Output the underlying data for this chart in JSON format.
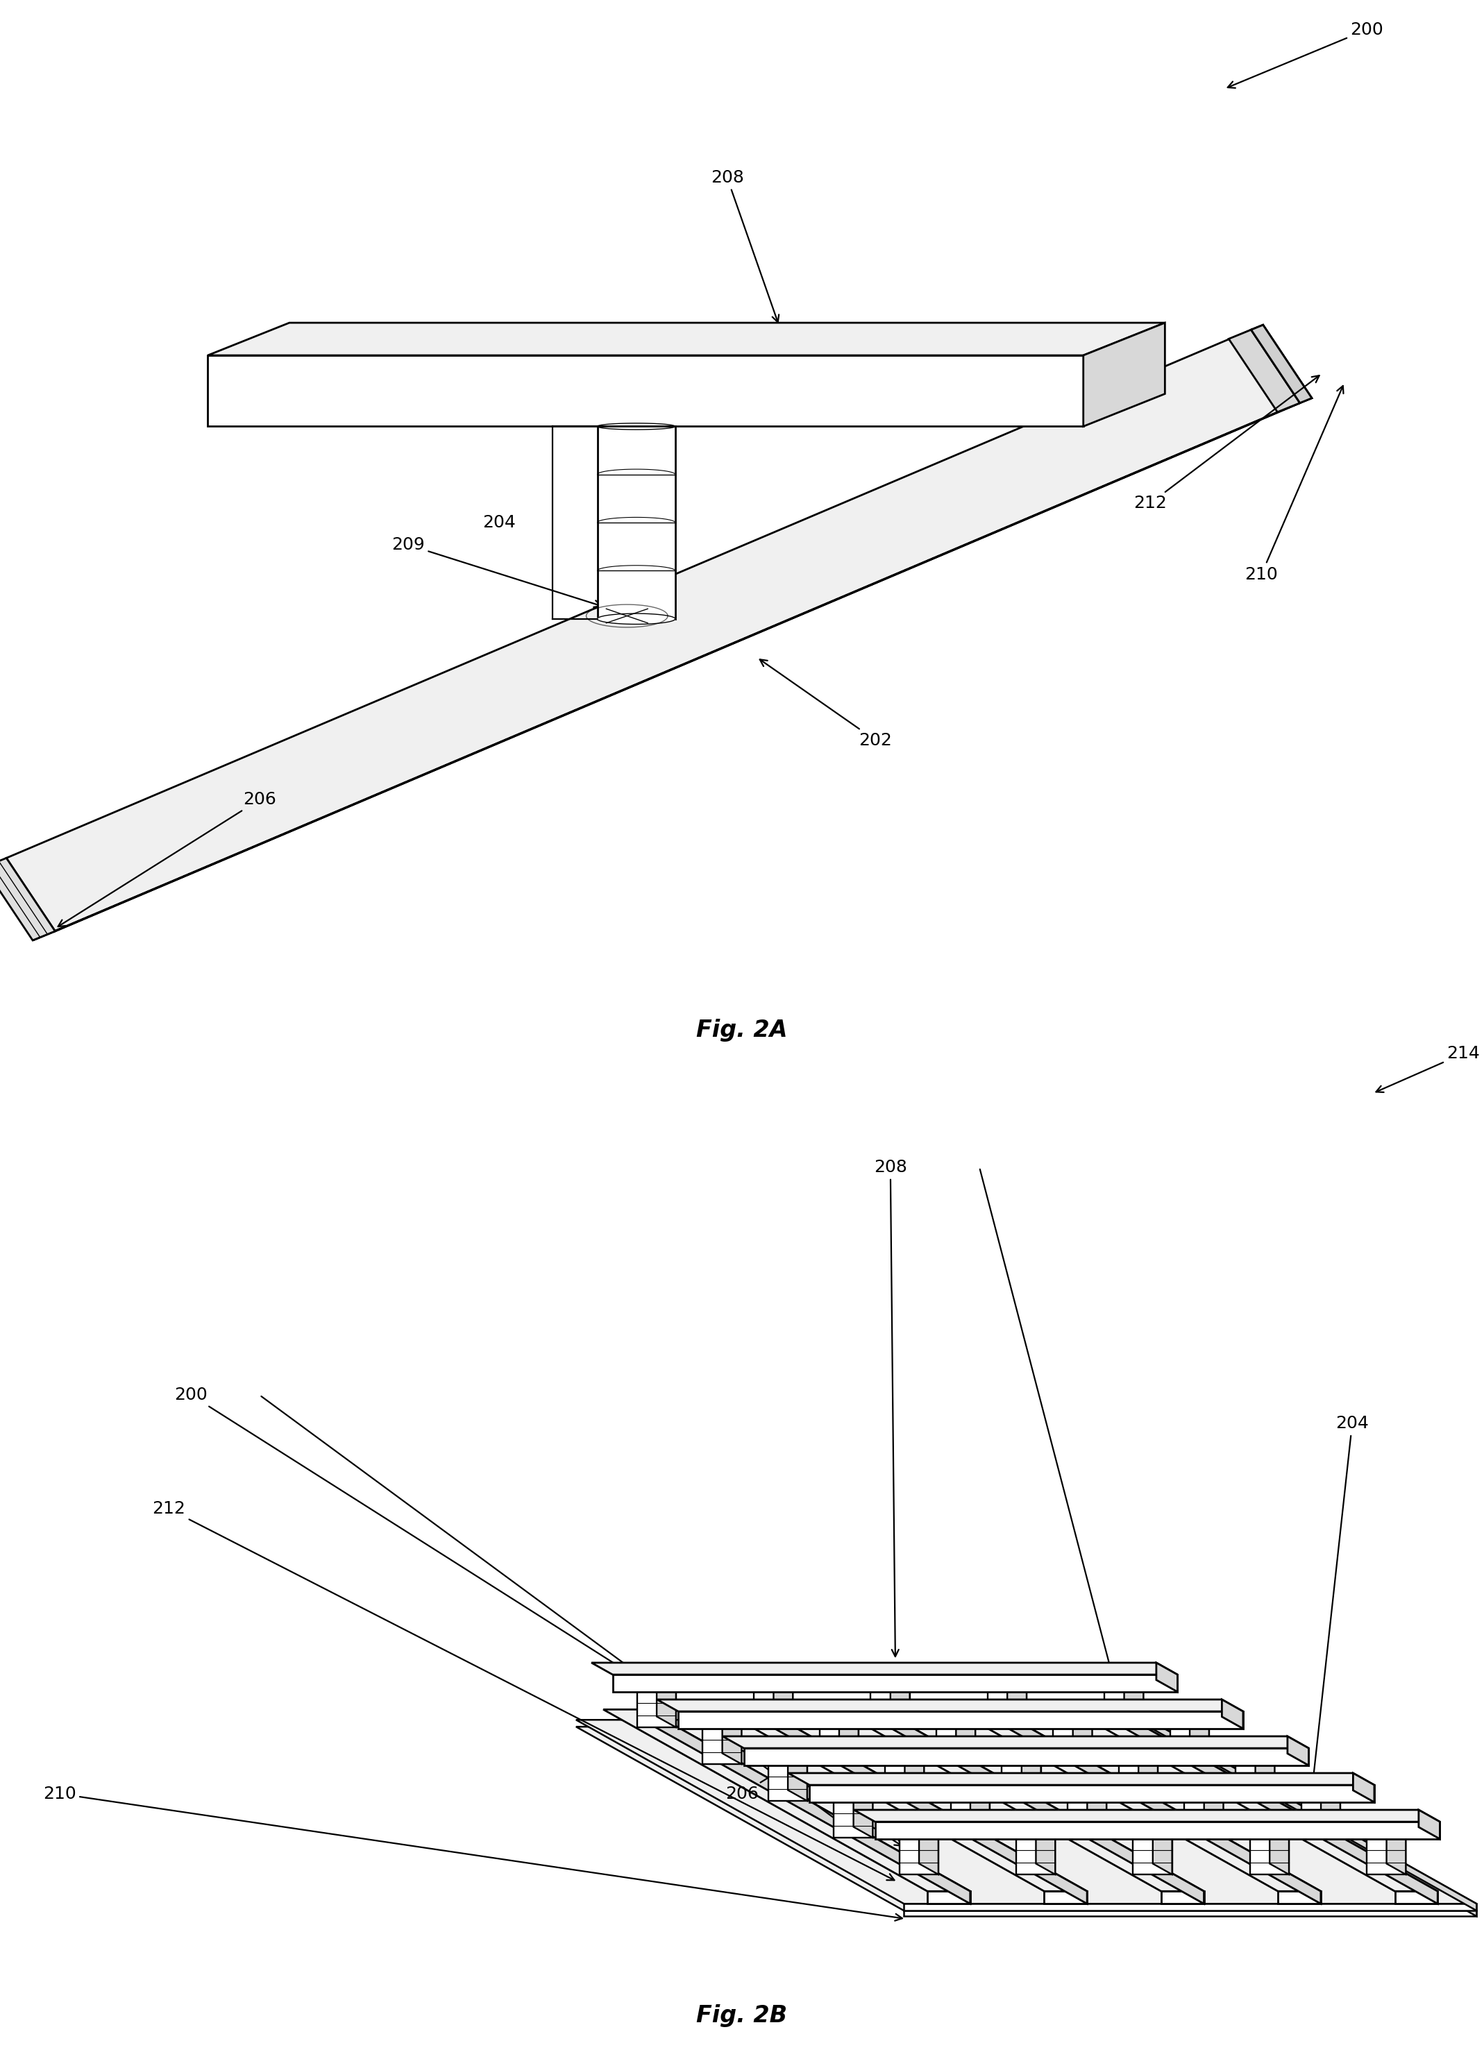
{
  "fig_title_a": "Fig. 2A",
  "fig_title_b": "Fig. 2B",
  "bg_color": "#ffffff",
  "lc": "#000000",
  "lw": 2.0,
  "lw_thin": 1.0,
  "fs_label": 18,
  "fs_fig": 24,
  "fc_white": "#ffffff",
  "fc_light": "#f0f0f0",
  "fc_mid": "#d8d8d8",
  "fc_dark": "#b8b8b8"
}
